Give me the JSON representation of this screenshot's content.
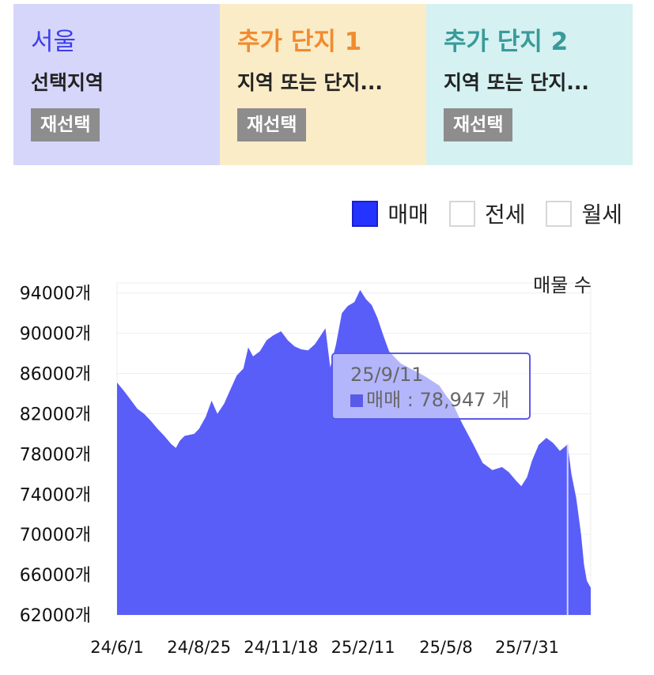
{
  "region_tiles": [
    {
      "title": "서울",
      "subtitle": "선택지역",
      "button": "재선택"
    },
    {
      "title": "추가 단지 1",
      "subtitle": "지역 또는 단지...",
      "button": "재선택"
    },
    {
      "title": "추가 단지 2",
      "subtitle": "지역 또는 단지...",
      "button": "재선택"
    }
  ],
  "trade_filter": [
    {
      "label": "매매",
      "checked": true
    },
    {
      "label": "전세",
      "checked": false
    },
    {
      "label": "월세",
      "checked": false
    }
  ],
  "tooltip": {
    "date": "25/9/11",
    "series": "매매",
    "value_text": " : 78,947 개"
  },
  "colors": {
    "series_fill": "#5a5ef8",
    "accent": "#2433ff"
  },
  "chart_data": {
    "type": "area",
    "series_label": "매물 수",
    "y_ticks": [
      "94000개",
      "90000개",
      "86000개",
      "82000개",
      "78000개",
      "74000개",
      "70000개",
      "66000개",
      "62000개"
    ],
    "x_ticks": [
      "24/6/1",
      "24/8/25",
      "24/11/18",
      "25/2/11",
      "25/5/8",
      "25/7/31"
    ],
    "ylim": [
      62000,
      95000
    ],
    "x_start": "24/6/1",
    "x_end": "25/10/5",
    "points": [
      [
        "24/6/1",
        85100
      ],
      [
        "24/6/8",
        84300
      ],
      [
        "24/6/15",
        83400
      ],
      [
        "24/6/22",
        82500
      ],
      [
        "24/6/29",
        82000
      ],
      [
        "24/7/6",
        81300
      ],
      [
        "24/7/13",
        80500
      ],
      [
        "24/7/20",
        79800
      ],
      [
        "24/7/27",
        79000
      ],
      [
        "24/8/1",
        78600
      ],
      [
        "24/8/5",
        79300
      ],
      [
        "24/8/10",
        79800
      ],
      [
        "24/8/20",
        80000
      ],
      [
        "24/8/25",
        80500
      ],
      [
        "24/9/1",
        81700
      ],
      [
        "24/9/7",
        83300
      ],
      [
        "24/9/13",
        82000
      ],
      [
        "24/9/20",
        83000
      ],
      [
        "24/9/26",
        84300
      ],
      [
        "24/10/3",
        85800
      ],
      [
        "24/10/10",
        86500
      ],
      [
        "24/10/15",
        88600
      ],
      [
        "24/10/20",
        87700
      ],
      [
        "24/10/27",
        88200
      ],
      [
        "24/11/3",
        89300
      ],
      [
        "24/11/10",
        89800
      ],
      [
        "24/11/18",
        90200
      ],
      [
        "24/11/25",
        89300
      ],
      [
        "24/12/2",
        88700
      ],
      [
        "24/12/9",
        88400
      ],
      [
        "24/12/16",
        88300
      ],
      [
        "24/12/23",
        88900
      ],
      [
        "24/12/30",
        89900
      ],
      [
        "25/1/3",
        90500
      ],
      [
        "25/1/8",
        86600
      ],
      [
        "25/1/14",
        88900
      ],
      [
        "25/1/20",
        92000
      ],
      [
        "25/1/26",
        92700
      ],
      [
        "25/2/2",
        93100
      ],
      [
        "25/2/8",
        94300
      ],
      [
        "25/2/14",
        93400
      ],
      [
        "25/2/20",
        92800
      ],
      [
        "25/2/26",
        91500
      ],
      [
        "25/3/4",
        89800
      ],
      [
        "25/3/10",
        88200
      ],
      [
        "25/3/16",
        87600
      ],
      [
        "25/3/22",
        87000
      ],
      [
        "25/4/1",
        86500
      ],
      [
        "25/4/15",
        85800
      ],
      [
        "25/5/1",
        84800
      ],
      [
        "25/5/8",
        83800
      ],
      [
        "25/5/15",
        83000
      ],
      [
        "25/5/25",
        81000
      ],
      [
        "25/6/5",
        79000
      ],
      [
        "25/6/15",
        77100
      ],
      [
        "25/6/25",
        76400
      ],
      [
        "25/7/5",
        76700
      ],
      [
        "25/7/12",
        76200
      ],
      [
        "25/7/20",
        75300
      ],
      [
        "25/7/25",
        74800
      ],
      [
        "25/7/31",
        75700
      ],
      [
        "25/8/5",
        77300
      ],
      [
        "25/8/12",
        78900
      ],
      [
        "25/8/20",
        79600
      ],
      [
        "25/8/27",
        79100
      ],
      [
        "25/9/3",
        78300
      ],
      [
        "25/9/11",
        78947
      ],
      [
        "25/9/15",
        76000
      ],
      [
        "25/9/20",
        73600
      ],
      [
        "25/9/25",
        70000
      ],
      [
        "25/9/28",
        67000
      ],
      [
        "25/10/1",
        65400
      ],
      [
        "25/10/5",
        64700
      ]
    ]
  }
}
